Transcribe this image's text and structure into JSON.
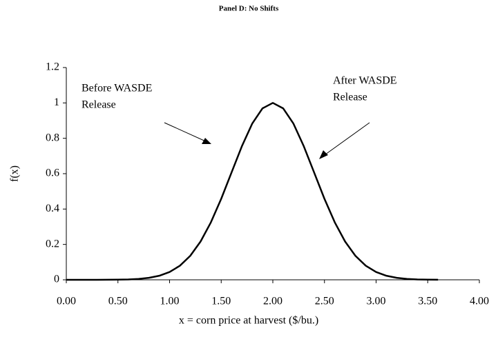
{
  "chart_data": {
    "type": "line",
    "title": "Panel D: No Shifts",
    "x_label": "x = corn price at harvest ($/bu.)",
    "y_label": "f(x)",
    "annotations": [
      {
        "text": [
          "Before WASDE",
          "Release"
        ]
      },
      {
        "text": [
          "After WASDE",
          "Release"
        ]
      }
    ],
    "x": [
      0,
      0.1,
      0.2,
      0.3,
      0.4,
      0.5,
      0.6,
      0.7,
      0.8,
      0.9,
      1.0,
      1.1,
      1.2,
      1.3,
      1.4,
      1.5,
      1.6,
      1.7,
      1.8,
      1.9,
      2.0,
      2.1,
      2.2,
      2.3,
      2.4,
      2.5,
      2.6,
      2.7,
      2.8,
      2.9,
      3.0,
      3.1,
      3.2,
      3.3,
      3.4,
      3.5,
      3.6
    ],
    "series": [
      {
        "name": "f(x)",
        "color": "#000000",
        "values": [
          0,
          0,
          0,
          0.0001,
          0.0003,
          0.0009,
          0.0022,
          0.0051,
          0.0111,
          0.0228,
          0.0439,
          0.0796,
          0.1353,
          0.2163,
          0.3247,
          0.4578,
          0.6065,
          0.7548,
          0.8825,
          0.9692,
          1,
          0.9692,
          0.8825,
          0.7548,
          0.6065,
          0.4578,
          0.3247,
          0.2163,
          0.1353,
          0.0796,
          0.0439,
          0.0228,
          0.0111,
          0.0051,
          0.0022,
          0.0009,
          0.0003
        ]
      }
    ],
    "xlim": [
      0,
      4
    ],
    "xticks": [
      {
        "value": 0,
        "label": "0.00"
      },
      {
        "value": 0.5,
        "label": "0.50"
      },
      {
        "value": 1,
        "label": "1.00"
      },
      {
        "value": 1.5,
        "label": "1.50"
      },
      {
        "value": 2,
        "label": "2.00"
      },
      {
        "value": 2.5,
        "label": "2.50"
      },
      {
        "value": 3,
        "label": "3.00"
      },
      {
        "value": 3.5,
        "label": "3.50"
      },
      {
        "value": 4,
        "label": "4.00"
      }
    ],
    "ylim": [
      0,
      1.2
    ],
    "yticks": [
      0,
      0.2,
      0.4,
      0.6,
      0.8,
      1,
      1.2
    ],
    "grid": false,
    "legend": false
  }
}
